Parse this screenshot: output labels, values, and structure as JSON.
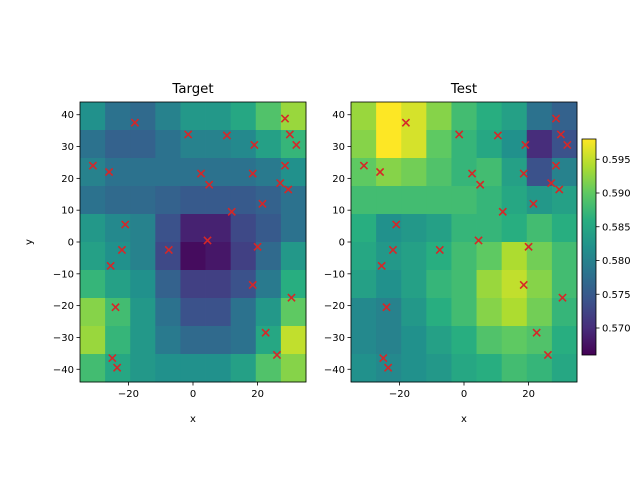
{
  "chart_data": [
    {
      "type": "heatmap",
      "title": "Target",
      "xlabel": "x",
      "ylabel": "y",
      "xlim": [
        -35,
        35
      ],
      "ylim": [
        -44,
        44
      ],
      "xticks": [
        -20,
        0,
        20
      ],
      "yticks": [
        -40,
        -30,
        -20,
        -10,
        0,
        10,
        20,
        30,
        40
      ],
      "grid_x_edges": [
        -35,
        -27.22,
        -19.44,
        -11.67,
        -3.89,
        3.89,
        11.67,
        19.44,
        27.22,
        35
      ],
      "grid_y_edges": [
        -44,
        -35.2,
        -26.4,
        -17.6,
        -8.8,
        0,
        8.8,
        17.6,
        26.4,
        35.2,
        44
      ],
      "values_rows_top_to_bottom": [
        [
          0.582,
          0.578,
          0.577,
          0.58,
          0.583,
          0.583,
          0.585,
          0.589,
          0.593
        ],
        [
          0.578,
          0.576,
          0.576,
          0.578,
          0.58,
          0.58,
          0.581,
          0.584,
          0.587
        ],
        [
          0.58,
          0.578,
          0.578,
          0.578,
          0.578,
          0.578,
          0.578,
          0.579,
          0.582
        ],
        [
          0.578,
          0.577,
          0.577,
          0.576,
          0.575,
          0.575,
          0.575,
          0.576,
          0.578
        ],
        [
          0.583,
          0.581,
          0.58,
          0.574,
          0.569,
          0.569,
          0.573,
          0.575,
          0.578
        ],
        [
          0.584,
          0.582,
          0.58,
          0.573,
          0.567,
          0.568,
          0.572,
          0.577,
          0.583
        ],
        [
          0.587,
          0.584,
          0.582,
          0.576,
          0.572,
          0.572,
          0.574,
          0.579,
          0.586
        ],
        [
          0.592,
          0.588,
          0.583,
          0.578,
          0.574,
          0.574,
          0.578,
          0.583,
          0.59
        ],
        [
          0.593,
          0.587,
          0.583,
          0.579,
          0.577,
          0.577,
          0.578,
          0.585,
          0.595
        ],
        [
          0.588,
          0.585,
          0.583,
          0.582,
          0.582,
          0.582,
          0.584,
          0.589,
          0.592
        ]
      ]
    },
    {
      "type": "heatmap",
      "title": "Test",
      "xlabel": "x",
      "ylabel": "",
      "xlim": [
        -35,
        35
      ],
      "ylim": [
        -44,
        44
      ],
      "xticks": [
        -20,
        0,
        20
      ],
      "yticks": [
        -40,
        -30,
        -20,
        -10,
        0,
        10,
        20,
        30,
        40
      ],
      "grid_x_edges": [
        -35,
        -27.22,
        -19.44,
        -11.67,
        -3.89,
        3.89,
        11.67,
        19.44,
        27.22,
        35
      ],
      "grid_y_edges": [
        -44,
        -35.2,
        -26.4,
        -17.6,
        -8.8,
        0,
        8.8,
        17.6,
        26.4,
        35.2,
        44
      ],
      "values_rows_top_to_bottom": [
        [
          0.593,
          0.598,
          0.596,
          0.592,
          0.588,
          0.586,
          0.584,
          0.578,
          0.576
        ],
        [
          0.592,
          0.598,
          0.596,
          0.59,
          0.587,
          0.585,
          0.582,
          0.57,
          0.574
        ],
        [
          0.59,
          0.592,
          0.591,
          0.589,
          0.587,
          0.588,
          0.584,
          0.574,
          0.58
        ],
        [
          0.588,
          0.588,
          0.588,
          0.588,
          0.588,
          0.587,
          0.585,
          0.583,
          0.584
        ],
        [
          0.586,
          0.582,
          0.583,
          0.584,
          0.587,
          0.587,
          0.586,
          0.588,
          0.586
        ],
        [
          0.585,
          0.583,
          0.584,
          0.586,
          0.588,
          0.59,
          0.594,
          0.591,
          0.588
        ],
        [
          0.584,
          0.582,
          0.584,
          0.587,
          0.588,
          0.593,
          0.595,
          0.592,
          0.588
        ],
        [
          0.581,
          0.58,
          0.583,
          0.586,
          0.588,
          0.592,
          0.594,
          0.591,
          0.587
        ],
        [
          0.581,
          0.58,
          0.582,
          0.584,
          0.586,
          0.589,
          0.59,
          0.589,
          0.586
        ],
        [
          0.582,
          0.581,
          0.582,
          0.583,
          0.585,
          0.586,
          0.588,
          0.587,
          0.585
        ]
      ]
    }
  ],
  "points": {
    "marker": "x",
    "color": "#d62728",
    "xy": [
      [
        -18,
        37.5
      ],
      [
        -1.5,
        33.8
      ],
      [
        10.5,
        33.5
      ],
      [
        28.5,
        38.8
      ],
      [
        30,
        33.8
      ],
      [
        -31,
        24
      ],
      [
        -26,
        22
      ],
      [
        19,
        30.5
      ],
      [
        32,
        30.5
      ],
      [
        28.5,
        24
      ],
      [
        2.5,
        21.5
      ],
      [
        5,
        18
      ],
      [
        18.5,
        21.5
      ],
      [
        27,
        18.5
      ],
      [
        29.5,
        16.5
      ],
      [
        12,
        9.5
      ],
      [
        21.5,
        12
      ],
      [
        -21,
        5.5
      ],
      [
        4.5,
        0.5
      ],
      [
        -22,
        -2.5
      ],
      [
        -7.5,
        -2.5
      ],
      [
        20,
        -1.5
      ],
      [
        -25.5,
        -7.5
      ],
      [
        -24,
        -20.5
      ],
      [
        18.5,
        -13.5
      ],
      [
        30.5,
        -17.5
      ],
      [
        22.5,
        -28.5
      ],
      [
        26,
        -35.5
      ],
      [
        -25,
        -36.5
      ],
      [
        -23.5,
        -39.5
      ]
    ]
  },
  "colorbar": {
    "vmin": 0.566,
    "vmax": 0.598,
    "tick_values": [
      0.57,
      0.575,
      0.58,
      0.585,
      0.59,
      0.595
    ],
    "tick_labels": [
      "0.570",
      "0.575",
      "0.580",
      "0.585",
      "0.590",
      "0.595"
    ]
  }
}
